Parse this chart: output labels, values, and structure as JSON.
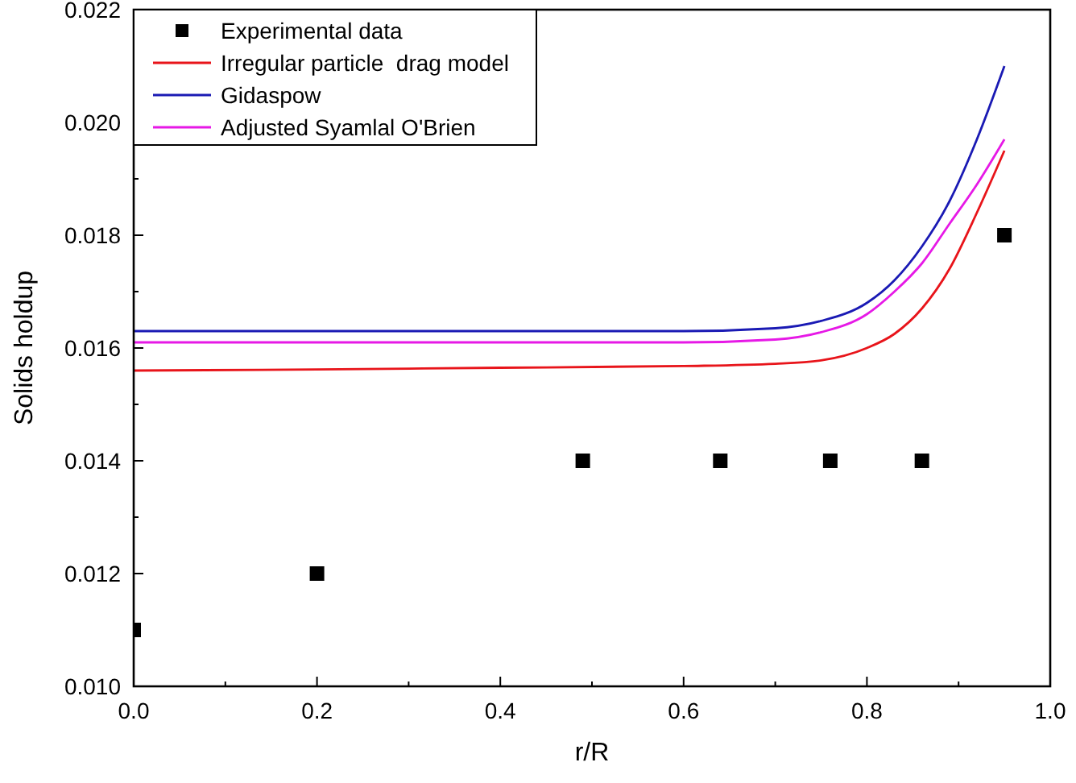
{
  "chart_data": {
    "type": "line",
    "xlabel": "r/R",
    "ylabel": "Solids holdup",
    "xlim": [
      0,
      1
    ],
    "xticks": [
      {
        "value": 0,
        "label": "0.0"
      },
      {
        "value": 0.2,
        "label": "0.2"
      },
      {
        "value": 0.4,
        "label": "0.4"
      },
      {
        "value": 0.6,
        "label": "0.6"
      },
      {
        "value": 0.8,
        "label": "0.8"
      },
      {
        "value": 1,
        "label": "1.0"
      }
    ],
    "ylim": [
      0.01,
      0.022
    ],
    "yticks": [
      {
        "value": 0.01,
        "label": "0.010"
      },
      {
        "value": 0.012,
        "label": "0.012"
      },
      {
        "value": 0.014,
        "label": "0.014"
      },
      {
        "value": 0.016,
        "label": "0.016"
      },
      {
        "value": 0.018,
        "label": "0.018"
      },
      {
        "value": 0.02,
        "label": "0.020"
      },
      {
        "value": 0.022,
        "label": "0.022"
      }
    ],
    "legend": "top left",
    "grid": false,
    "series": [
      {
        "name": "Experimental data",
        "type": "scatter",
        "marker": "square",
        "color": "#000000",
        "x": [
          0,
          0.2,
          0.49,
          0.64,
          0.76,
          0.86,
          0.95
        ],
        "values": [
          0.011,
          0.012,
          0.014,
          0.014,
          0.014,
          0.014,
          0.018
        ]
      },
      {
        "name": "Irregular particle  drag model",
        "color": "#e8141a",
        "x": [
          0,
          0.2,
          0.4,
          0.6,
          0.7,
          0.75,
          0.8,
          0.83,
          0.86,
          0.89,
          0.92,
          0.95
        ],
        "values": [
          0.0156,
          0.01562,
          0.01565,
          0.01568,
          0.01572,
          0.01578,
          0.016,
          0.01625,
          0.0167,
          0.0174,
          0.0184,
          0.0195
        ]
      },
      {
        "name": "Gidaspow",
        "color": "#1a1ab4",
        "x": [
          0,
          0.2,
          0.4,
          0.6,
          0.7,
          0.75,
          0.8,
          0.83,
          0.86,
          0.89,
          0.92,
          0.95
        ],
        "values": [
          0.0163,
          0.0163,
          0.0163,
          0.0163,
          0.01635,
          0.01648,
          0.0168,
          0.0172,
          0.0178,
          0.0186,
          0.0197,
          0.021
        ]
      },
      {
        "name": "Adjusted Syamlal O'Brien",
        "color": "#e619e6",
        "x": [
          0,
          0.2,
          0.4,
          0.6,
          0.7,
          0.75,
          0.8,
          0.83,
          0.86,
          0.89,
          0.92,
          0.95
        ],
        "values": [
          0.0161,
          0.0161,
          0.0161,
          0.0161,
          0.01615,
          0.01628,
          0.0166,
          0.017,
          0.0175,
          0.0182,
          0.0189,
          0.0197
        ]
      }
    ]
  }
}
